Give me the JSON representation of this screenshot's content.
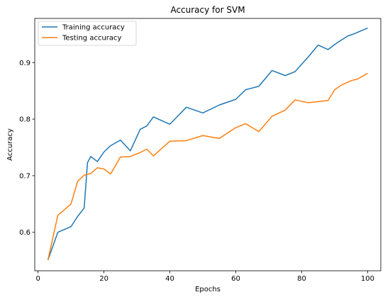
{
  "chart_data": {
    "type": "line",
    "title": "Accuracy for SVM",
    "xlabel": "Epochs",
    "ylabel": "Accuracy",
    "xlim": [
      -1,
      104
    ],
    "ylim": [
      0.532,
      0.978
    ],
    "xticks": [
      0,
      20,
      40,
      60,
      80,
      100
    ],
    "yticks": [
      0.6,
      0.7,
      0.8,
      0.9
    ],
    "xtick_labels": [
      "0",
      "20",
      "40",
      "60",
      "80",
      "100"
    ],
    "ytick_labels": [
      "0.6",
      "0.7",
      "0.8",
      "0.9"
    ],
    "grid": false,
    "legend_position": "upper-left",
    "series": [
      {
        "name": "Training accuracy",
        "color": "#1f77b4",
        "x": [
          3,
          6,
          10,
          12,
          14,
          15,
          16,
          18,
          20,
          22,
          25,
          28,
          31,
          33,
          35,
          40,
          45,
          50,
          55,
          60,
          63,
          67,
          71,
          75,
          78,
          82,
          85,
          88,
          91,
          94,
          96,
          100
        ],
        "y": [
          0.551,
          0.6,
          0.61,
          0.628,
          0.643,
          0.723,
          0.734,
          0.725,
          0.742,
          0.753,
          0.763,
          0.744,
          0.782,
          0.788,
          0.804,
          0.791,
          0.821,
          0.811,
          0.825,
          0.835,
          0.852,
          0.858,
          0.886,
          0.877,
          0.884,
          0.91,
          0.931,
          0.923,
          0.936,
          0.947,
          0.951,
          0.961
        ]
      },
      {
        "name": "Testing accuracy",
        "color": "#ff7f0e",
        "x": [
          3,
          6,
          10,
          12,
          14,
          16,
          18,
          20,
          22,
          25,
          28,
          31,
          33,
          35,
          40,
          45,
          50,
          55,
          60,
          63,
          67,
          71,
          75,
          78,
          82,
          85,
          88,
          90,
          92,
          95,
          97,
          100
        ],
        "y": [
          0.551,
          0.63,
          0.65,
          0.69,
          0.701,
          0.704,
          0.714,
          0.712,
          0.703,
          0.733,
          0.734,
          0.741,
          0.747,
          0.735,
          0.761,
          0.762,
          0.771,
          0.766,
          0.785,
          0.792,
          0.778,
          0.805,
          0.816,
          0.834,
          0.829,
          0.831,
          0.833,
          0.852,
          0.86,
          0.868,
          0.871,
          0.881
        ]
      }
    ]
  }
}
